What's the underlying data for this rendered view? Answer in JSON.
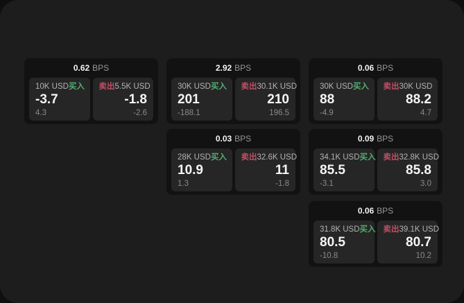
{
  "labels": {
    "bps_unit": "BPS",
    "buy": "买入",
    "sell": "卖出"
  },
  "colors": {
    "buy_green": "#4FAE6E",
    "sell_red": "#C14F63",
    "window_bg": "#1D1D1D",
    "card_bg": "#121212",
    "panel_bg": "#262626"
  },
  "cards": [
    {
      "bps": "0.62",
      "buy": {
        "size": "10K USD",
        "price": "-3.7",
        "sub": "4.3"
      },
      "sell": {
        "size": "5.5K USD",
        "price": "-1.8",
        "sub": "-2.6"
      }
    },
    {
      "bps": "2.92",
      "buy": {
        "size": "30K USD",
        "price": "201",
        "sub": "-188.1"
      },
      "sell": {
        "size": "30.1K USD",
        "price": "210",
        "sub": "196.5"
      }
    },
    {
      "bps": "0.06",
      "buy": {
        "size": "30K USD",
        "price": "88",
        "sub": "-4.9"
      },
      "sell": {
        "size": "30K USD",
        "price": "88.2",
        "sub": "4.7"
      }
    },
    {
      "bps": "0.03",
      "buy": {
        "size": "28K USD",
        "price": "10.9",
        "sub": "1.3"
      },
      "sell": {
        "size": "32.6K USD",
        "price": "11",
        "sub": "-1.8"
      }
    },
    {
      "bps": "0.09",
      "buy": {
        "size": "34.1K USD",
        "price": "85.5",
        "sub": "-3.1"
      },
      "sell": {
        "size": "32.8K USD",
        "price": "85.8",
        "sub": "3.0"
      }
    },
    {
      "bps": "0.06",
      "buy": {
        "size": "31.8K USD",
        "price": "80.5",
        "sub": "-10.8"
      },
      "sell": {
        "size": "39.1K USD",
        "price": "80.7",
        "sub": "10.2"
      }
    }
  ]
}
